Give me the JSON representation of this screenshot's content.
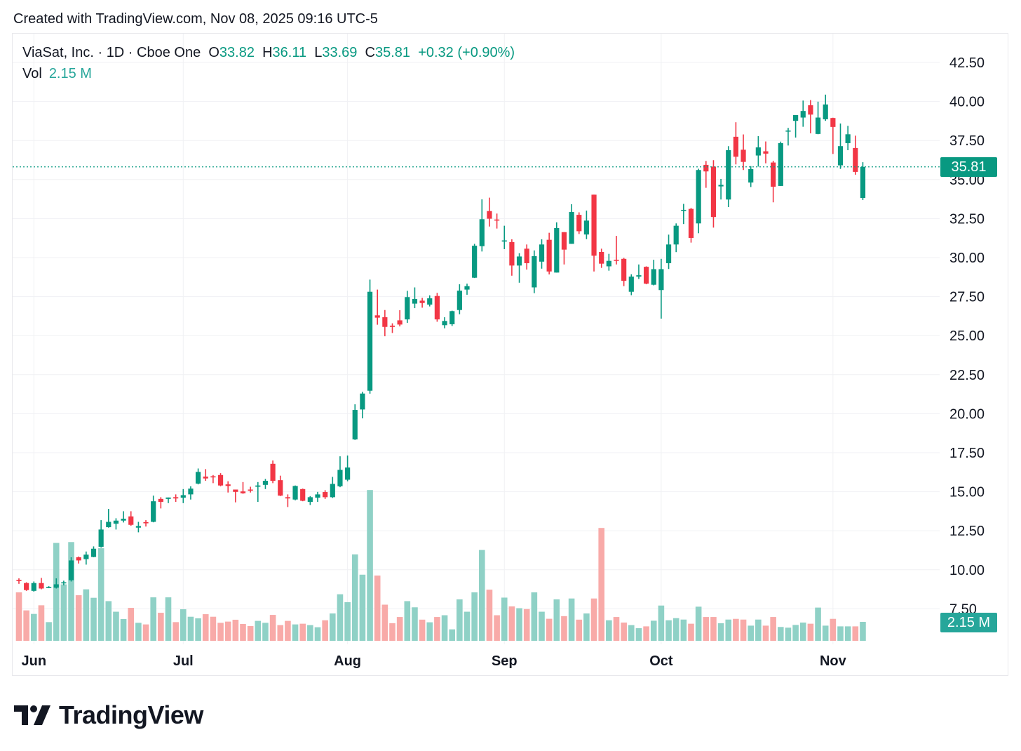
{
  "credit": "Created with TradingView.com, Nov 08, 2025 09:16 UTC-5",
  "legend": {
    "symbol": "ViaSat, Inc. · 1D · Cboe One",
    "o_label": "O",
    "o": "33.82",
    "h_label": "H",
    "h": "36.11",
    "l_label": "L",
    "l": "33.69",
    "c_label": "C",
    "c": "35.81",
    "change": "+0.32 (+0.90%)",
    "vol_label": "Vol",
    "vol": "2.15 M"
  },
  "last_price_tag": "35.81",
  "last_volume_tag": "2.15 M",
  "logo_text": "TradingView",
  "colors": {
    "up": "#089981",
    "down": "#f23645",
    "vol_up": "#8fd1c6",
    "vol_down": "#f8aaa8",
    "grid": "#f0f1f4",
    "tag_price": "#089981",
    "tag_vol": "#26a69a"
  },
  "chart_data": {
    "type": "candlestick",
    "title": "",
    "price_axis": {
      "ticks": [
        "42.50",
        "40.00",
        "37.50",
        "35.00",
        "32.50",
        "30.00",
        "27.50",
        "25.00",
        "22.50",
        "20.00",
        "17.50",
        "15.00",
        "12.50",
        "10.00",
        "7.50"
      ],
      "position": "right",
      "grid": true
    },
    "time_axis": {
      "ticks": [
        {
          "label": "Jun",
          "date": "2025-06-02"
        },
        {
          "label": "Jul",
          "date": "2025-07-01"
        },
        {
          "label": "Aug",
          "date": "2025-08-01"
        },
        {
          "label": "Sep",
          "date": "2025-09-02"
        },
        {
          "label": "Oct",
          "date": "2025-10-01"
        },
        {
          "label": "Nov",
          "date": "2025-11-03"
        }
      ],
      "grid": true
    },
    "volume_unit": "M",
    "columns": [
      "date",
      "open",
      "high",
      "low",
      "close",
      "volume"
    ],
    "bars": [
      [
        "2025-05-29",
        9.35,
        9.45,
        9.1,
        9.3,
        5.5
      ],
      [
        "2025-05-30",
        9.15,
        9.2,
        8.65,
        8.7,
        3.45
      ],
      [
        "2025-06-02",
        8.65,
        9.25,
        8.6,
        9.15,
        3.05
      ],
      [
        "2025-06-03",
        9.15,
        9.48,
        8.75,
        8.8,
        4.03
      ],
      [
        "2025-06-04",
        8.85,
        8.95,
        8.82,
        8.9,
        2.12
      ],
      [
        "2025-06-05",
        8.85,
        9.45,
        8.8,
        9.07,
        11.1
      ],
      [
        "2025-06-06",
        9.15,
        9.3,
        9.0,
        9.2,
        6.4
      ],
      [
        "2025-06-09",
        9.33,
        10.8,
        9.25,
        10.6,
        11.2
      ],
      [
        "2025-06-10",
        10.8,
        10.85,
        10.4,
        10.6,
        5.17
      ],
      [
        "2025-06-11",
        10.68,
        11.17,
        10.33,
        10.97,
        5.84
      ],
      [
        "2025-06-12",
        10.82,
        11.5,
        10.8,
        11.35,
        4.88
      ],
      [
        "2025-06-13",
        11.47,
        13.18,
        11.42,
        12.58,
        10.5
      ],
      [
        "2025-06-16",
        12.73,
        13.9,
        12.7,
        13.07,
        4.5
      ],
      [
        "2025-06-17",
        12.95,
        13.3,
        12.58,
        13.15,
        3.3
      ],
      [
        "2025-06-18",
        13.15,
        13.75,
        13.03,
        13.27,
        2.47
      ],
      [
        "2025-06-20",
        13.42,
        13.75,
        12.82,
        12.88,
        3.74
      ],
      [
        "2025-06-23",
        12.7,
        13.07,
        12.4,
        12.8,
        2.04
      ],
      [
        "2025-06-24",
        13.05,
        13.18,
        12.77,
        12.98,
        1.86
      ],
      [
        "2025-06-25",
        13.07,
        14.75,
        13.04,
        14.39,
        4.93
      ],
      [
        "2025-06-26",
        14.54,
        14.65,
        13.93,
        14.35,
        3.18
      ],
      [
        "2025-06-27",
        14.54,
        14.63,
        14.27,
        14.63,
        4.93
      ],
      [
        "2025-06-30",
        14.65,
        14.83,
        14.35,
        14.57,
        2.12
      ],
      [
        "2025-07-01",
        14.62,
        15.17,
        14.27,
        14.78,
        3.58
      ],
      [
        "2025-07-02",
        14.83,
        15.35,
        14.5,
        15.2,
        2.73
      ],
      [
        "2025-07-03",
        15.52,
        16.49,
        15.47,
        16.27,
        2.55
      ],
      [
        "2025-07-07",
        15.97,
        16.45,
        15.7,
        15.85,
        3.02
      ],
      [
        "2025-07-08",
        15.99,
        16.07,
        15.55,
        15.92,
        2.73
      ],
      [
        "2025-07-09",
        16.07,
        16.19,
        15.35,
        15.4,
        2.04
      ],
      [
        "2025-07-10",
        15.47,
        15.67,
        14.95,
        15.37,
        2.18
      ],
      [
        "2025-07-11",
        15.14,
        15.14,
        14.32,
        14.99,
        2.39
      ],
      [
        "2025-07-14",
        15.02,
        15.62,
        14.87,
        14.9,
        1.91
      ],
      [
        "2025-07-15",
        15.14,
        15.32,
        14.95,
        15.07,
        1.67
      ],
      [
        "2025-07-16",
        15.32,
        15.62,
        14.35,
        15.4,
        2.26
      ],
      [
        "2025-07-17",
        15.44,
        15.82,
        15.17,
        15.7,
        2.04
      ],
      [
        "2025-07-18",
        16.79,
        17.0,
        15.55,
        15.7,
        2.94
      ],
      [
        "2025-07-21",
        15.74,
        16.03,
        14.72,
        14.75,
        1.78
      ],
      [
        "2025-07-22",
        14.65,
        14.83,
        14.02,
        14.57,
        2.26
      ],
      [
        "2025-07-23",
        14.5,
        15.4,
        14.45,
        15.37,
        1.86
      ],
      [
        "2025-07-24",
        15.17,
        15.2,
        14.39,
        14.42,
        1.94
      ],
      [
        "2025-07-25",
        14.35,
        14.72,
        14.15,
        14.65,
        1.78
      ],
      [
        "2025-07-28",
        14.62,
        14.99,
        14.35,
        14.83,
        1.54
      ],
      [
        "2025-07-29",
        14.98,
        15.1,
        14.54,
        14.65,
        2.33
      ],
      [
        "2025-07-30",
        14.65,
        15.95,
        14.6,
        15.5,
        3.1
      ],
      [
        "2025-07-31",
        15.35,
        17.27,
        15.29,
        16.4,
        5.28
      ],
      [
        "2025-08-01",
        15.77,
        17.32,
        15.67,
        16.55,
        4.38
      ],
      [
        "2025-08-04",
        18.35,
        20.6,
        18.32,
        20.24,
        9.8
      ],
      [
        "2025-08-05",
        20.27,
        21.4,
        19.7,
        21.29,
        7.5
      ],
      [
        "2025-08-06",
        21.47,
        28.59,
        21.28,
        27.81,
        17.1
      ],
      [
        "2025-08-07",
        26.3,
        27.95,
        25.7,
        26.15,
        7.4
      ],
      [
        "2025-08-08",
        26.18,
        26.64,
        24.96,
        25.56,
        4.1
      ],
      [
        "2025-08-11",
        25.64,
        25.79,
        25.17,
        25.56,
        2.0
      ],
      [
        "2025-08-12",
        25.98,
        26.63,
        25.59,
        25.71,
        2.7
      ],
      [
        "2025-08-13",
        26.04,
        27.87,
        25.82,
        27.47,
        4.5
      ],
      [
        "2025-08-14",
        27.05,
        28.09,
        26.76,
        27.35,
        3.8
      ],
      [
        "2025-08-15",
        27.24,
        27.42,
        26.79,
        27.09,
        2.4
      ],
      [
        "2025-08-18",
        26.99,
        27.58,
        26.87,
        27.39,
        2.1
      ],
      [
        "2025-08-19",
        27.54,
        27.74,
        25.89,
        26.04,
        2.7
      ],
      [
        "2025-08-20",
        25.67,
        26.18,
        25.47,
        25.94,
        2.9
      ],
      [
        "2025-08-21",
        25.73,
        26.6,
        25.62,
        26.57,
        1.3
      ],
      [
        "2025-08-22",
        26.64,
        28.29,
        26.37,
        27.88,
        4.7
      ],
      [
        "2025-08-25",
        27.95,
        28.33,
        27.62,
        28.17,
        3.3
      ],
      [
        "2025-08-26",
        28.71,
        30.88,
        28.69,
        30.76,
        5.5
      ],
      [
        "2025-08-27",
        30.73,
        33.73,
        30.39,
        32.46,
        10.3
      ],
      [
        "2025-08-28",
        32.98,
        33.84,
        31.99,
        32.49,
        5.8
      ],
      [
        "2025-08-29",
        32.44,
        32.82,
        31.86,
        32.37,
        2.9
      ],
      [
        "2025-09-02",
        31.06,
        32.04,
        30.54,
        31.1,
        4.9
      ],
      [
        "2025-09-03",
        30.99,
        31.17,
        28.84,
        29.49,
        3.9
      ],
      [
        "2025-09-04",
        29.49,
        30.28,
        28.39,
        30.07,
        3.7
      ],
      [
        "2025-09-05",
        30.57,
        30.84,
        29.23,
        29.64,
        3.6
      ],
      [
        "2025-09-08",
        28.09,
        30.46,
        27.72,
        30.09,
        5.5
      ],
      [
        "2025-09-09",
        29.74,
        31.17,
        29.29,
        30.84,
        3.3
      ],
      [
        "2025-09-10",
        31.14,
        31.59,
        28.92,
        29.11,
        2.5
      ],
      [
        "2025-09-11",
        29.04,
        32.26,
        29.04,
        31.89,
        4.7
      ],
      [
        "2025-09-12",
        31.63,
        31.63,
        29.56,
        30.51,
        2.8
      ],
      [
        "2025-09-15",
        30.88,
        33.42,
        30.88,
        32.92,
        4.8
      ],
      [
        "2025-09-16",
        32.74,
        32.9,
        31.51,
        31.69,
        2.4
      ],
      [
        "2025-09-17",
        31.48,
        33.01,
        31.18,
        32.37,
        3.1
      ],
      [
        "2025-09-18",
        34.03,
        34.03,
        29.11,
        30.12,
        4.8
      ],
      [
        "2025-09-19",
        30.36,
        30.57,
        29.34,
        29.61,
        12.8
      ],
      [
        "2025-09-22",
        29.44,
        30.24,
        29.16,
        29.79,
        2.33
      ],
      [
        "2025-09-23",
        29.86,
        31.39,
        29.56,
        29.82,
        2.7
      ],
      [
        "2025-09-24",
        29.92,
        29.98,
        28.17,
        28.51,
        2.07
      ],
      [
        "2025-09-25",
        27.81,
        28.93,
        27.59,
        28.78,
        1.78
      ],
      [
        "2025-09-26",
        28.78,
        29.56,
        28.63,
        28.87,
        1.43
      ],
      [
        "2025-09-29",
        29.41,
        29.44,
        28.29,
        28.33,
        1.64
      ],
      [
        "2025-09-30",
        28.26,
        29.86,
        28.22,
        29.26,
        2.28
      ],
      [
        "2025-10-01",
        27.92,
        29.92,
        26.09,
        29.26,
        4.0
      ],
      [
        "2025-10-02",
        29.64,
        31.47,
        29.27,
        30.84,
        2.33
      ],
      [
        "2025-10-03",
        30.84,
        32.19,
        30.35,
        32.04,
        2.57
      ],
      [
        "2025-10-06",
        33.0,
        33.44,
        32.15,
        33.06,
        2.41
      ],
      [
        "2025-10-07",
        33.12,
        33.18,
        30.96,
        31.26,
        1.94
      ],
      [
        "2025-10-08",
        32.19,
        35.69,
        31.56,
        35.61,
        3.87
      ],
      [
        "2025-10-09",
        35.94,
        36.19,
        34.47,
        35.52,
        2.7
      ],
      [
        "2025-10-10",
        35.83,
        36.24,
        31.92,
        32.6,
        2.7
      ],
      [
        "2025-10-13",
        34.56,
        35.04,
        33.72,
        34.66,
        1.99
      ],
      [
        "2025-10-14",
        33.72,
        37.14,
        33.24,
        36.88,
        2.41
      ],
      [
        "2025-10-15",
        37.74,
        38.67,
        35.97,
        36.46,
        2.49
      ],
      [
        "2025-10-16",
        36.91,
        37.89,
        35.61,
        36.13,
        2.41
      ],
      [
        "2025-10-17",
        34.81,
        35.86,
        34.52,
        35.67,
        1.72
      ],
      [
        "2025-10-20",
        36.54,
        37.78,
        35.83,
        37.06,
        2.41
      ],
      [
        "2025-10-21",
        36.81,
        37.44,
        36.04,
        36.66,
        1.72
      ],
      [
        "2025-10-22",
        36.09,
        36.2,
        33.54,
        34.54,
        2.7
      ],
      [
        "2025-10-23",
        34.59,
        37.43,
        34.59,
        37.33,
        1.57
      ],
      [
        "2025-10-24",
        38.08,
        38.31,
        37.18,
        38.14,
        1.49
      ],
      [
        "2025-10-27",
        38.76,
        39.13,
        37.69,
        39.13,
        1.8
      ],
      [
        "2025-10-28",
        38.97,
        40.06,
        38.38,
        39.39,
        2.07
      ],
      [
        "2025-10-29",
        39.76,
        40.09,
        37.96,
        39.16,
        1.94
      ],
      [
        "2025-10-30",
        37.92,
        39.99,
        37.9,
        38.97,
        3.77
      ],
      [
        "2025-10-31",
        38.86,
        40.44,
        38.76,
        39.81,
        1.72
      ],
      [
        "2025-11-03",
        38.94,
        38.96,
        36.64,
        38.37,
        2.49
      ],
      [
        "2025-11-04",
        35.91,
        38.59,
        35.68,
        37.14,
        1.64
      ],
      [
        "2025-11-05",
        37.33,
        38.44,
        36.88,
        37.9,
        1.64
      ],
      [
        "2025-11-06",
        37.02,
        37.81,
        35.31,
        35.49,
        1.64
      ],
      [
        "2025-11-07",
        33.82,
        36.11,
        33.69,
        35.81,
        2.15
      ]
    ],
    "last_price": 35.81
  }
}
